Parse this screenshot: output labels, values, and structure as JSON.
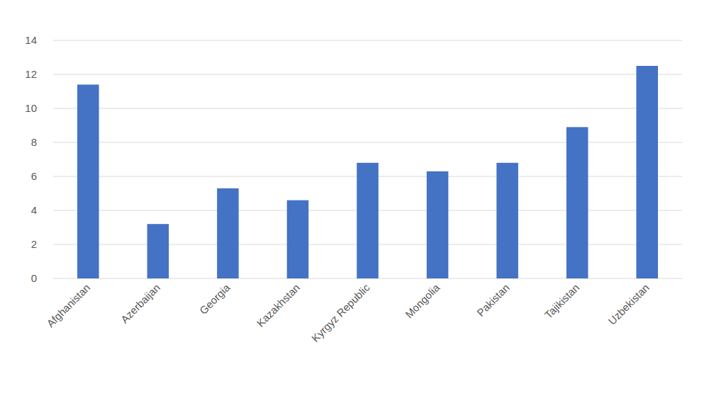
{
  "chart_data": {
    "type": "bar",
    "categories": [
      "Afghanistan",
      "Azerbaijan",
      "Georgia",
      "Kazakhstan",
      "Kyrgyz Republic",
      "Mongolia",
      "Pakistan",
      "Tajikistan",
      "Uzbekistan"
    ],
    "values": [
      11.4,
      3.2,
      5.3,
      4.6,
      6.8,
      6.3,
      6.8,
      8.9,
      12.5
    ],
    "color": "#4472c4",
    "ylim": [
      0,
      14
    ],
    "yticks": [
      0,
      2,
      4,
      6,
      8,
      10,
      12,
      14
    ],
    "grid": true
  }
}
